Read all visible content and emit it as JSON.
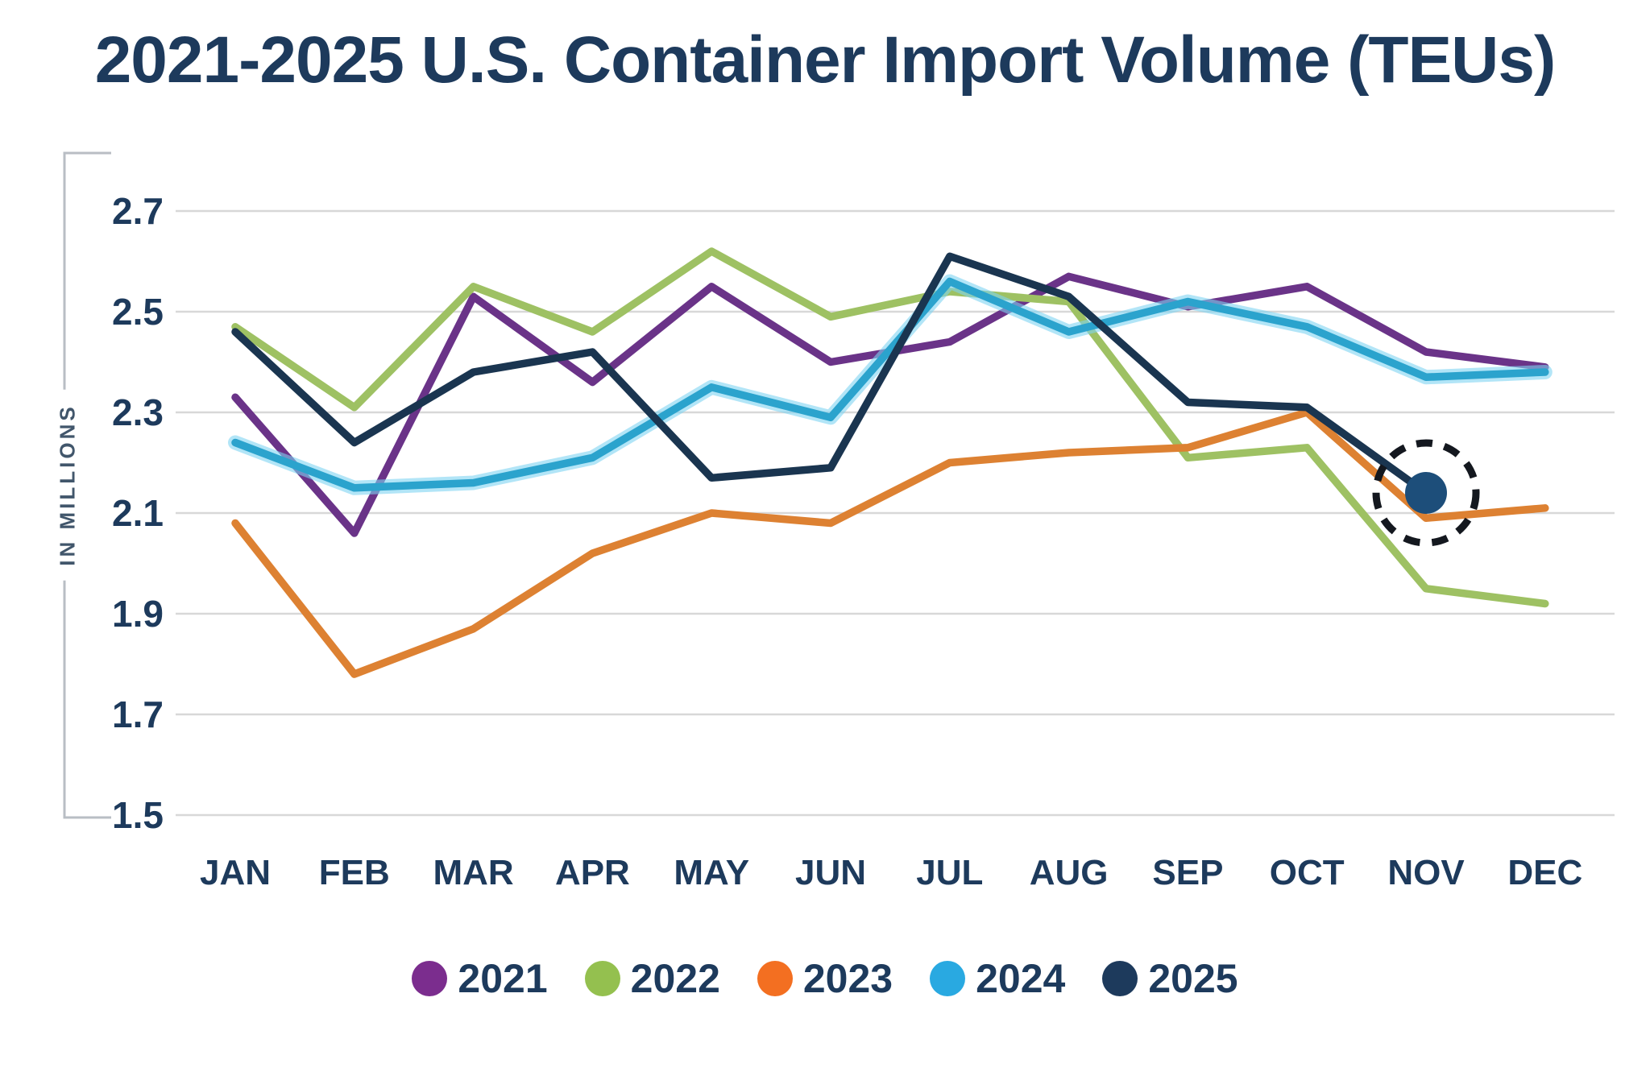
{
  "chart_data": {
    "type": "line",
    "title": "2021-2025 U.S. Container Import Volume (TEUs)",
    "xlabel": "",
    "ylabel": "IN MILLIONS",
    "ylim": [
      1.5,
      2.7
    ],
    "grid": true,
    "legend_position": "bottom",
    "y_ticks": [
      "2.7",
      "2.5",
      "2.3",
      "2.1",
      "1.9",
      "1.7",
      "1.5"
    ],
    "categories": [
      "JAN",
      "FEB",
      "MAR",
      "APR",
      "MAY",
      "JUN",
      "JUL",
      "AUG",
      "SEP",
      "OCT",
      "NOV",
      "DEC"
    ],
    "series": [
      {
        "name": "2021",
        "color": "#6a3388",
        "legend_color": "#7b2d8e",
        "values": [
          2.33,
          2.06,
          2.53,
          2.36,
          2.55,
          2.4,
          2.44,
          2.57,
          2.51,
          2.55,
          2.42,
          2.39
        ]
      },
      {
        "name": "2022",
        "color": "#9ec163",
        "legend_color": "#94c04f",
        "values": [
          2.47,
          2.31,
          2.55,
          2.46,
          2.62,
          2.49,
          2.54,
          2.52,
          2.21,
          2.23,
          1.95,
          1.92
        ]
      },
      {
        "name": "2023",
        "color": "#dd8132",
        "legend_color": "#f36f21",
        "values": [
          2.08,
          1.78,
          1.87,
          2.02,
          2.1,
          2.08,
          2.2,
          2.22,
          2.23,
          2.3,
          2.09,
          2.11
        ]
      },
      {
        "name": "2024",
        "color": "#2ba3cd",
        "halo_color": "#7fd4f2",
        "legend_color": "#29a9e1",
        "values": [
          2.24,
          2.15,
          2.16,
          2.21,
          2.35,
          2.29,
          2.56,
          2.46,
          2.52,
          2.47,
          2.37,
          2.38
        ]
      },
      {
        "name": "2025",
        "color": "#1a3550",
        "legend_color": "#1d3a5c",
        "values": [
          2.46,
          2.24,
          2.38,
          2.42,
          2.17,
          2.19,
          2.61,
          2.53,
          2.32,
          2.31,
          2.14,
          null
        ]
      }
    ],
    "annotation": {
      "style": "dashed-circle-highlight",
      "target_series": "2025",
      "target_category": "NOV",
      "target_value": 2.14,
      "dot_color": "#1d4e7a",
      "ring_color": "#14181f"
    }
  },
  "style": {
    "title_color": "#1d3a5c",
    "tick_label_color": "#1d3a5c",
    "gridline_color": "#d8d8d8",
    "axis_bracket_color": "#b9bec4",
    "background_color": "#ffffff"
  }
}
